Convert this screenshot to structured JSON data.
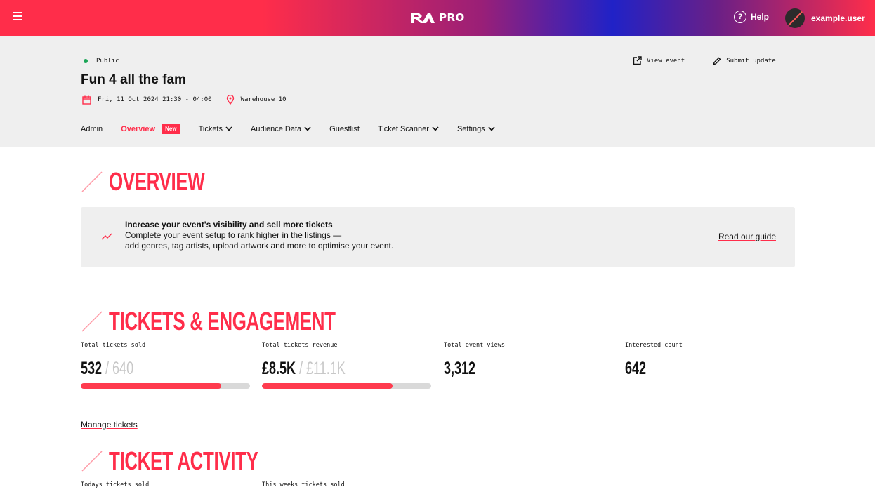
{
  "topbar": {
    "logo_text": "PRO",
    "help_label": "Help",
    "username": "example.user",
    "bg_color": "#ff2d4a"
  },
  "event": {
    "status": "Public",
    "title": "Fun 4 all the fam",
    "datetime": "Fri, 11 Oct 2024 21:30 - 04:00",
    "venue": "Warehouse 10",
    "actions": {
      "view_event": "View event",
      "submit_update": "Submit update"
    },
    "tabs": [
      {
        "label": "Admin"
      },
      {
        "label": "Overview",
        "badge": "New"
      },
      {
        "label": "Tickets"
      },
      {
        "label": "Audience Data"
      },
      {
        "label": "Guestlist"
      },
      {
        "label": "Ticket Scanner"
      },
      {
        "label": "Settings"
      }
    ]
  },
  "overview": {
    "title": "OVERVIEW",
    "banner": {
      "heading": "Increase your event's visibility and sell more tickets",
      "line1": "Complete your event setup to rank higher in the listings —",
      "line2": "add genres, tag artists, upload artwork and more to optimise your event.",
      "link": "Read our guide"
    }
  },
  "engagement": {
    "title": "TICKETS & ENGAGEMENT",
    "stats": [
      {
        "label": "Total tickets sold",
        "value": "532",
        "total": "/ 640",
        "progress": 0.83
      },
      {
        "label": "Total tickets revenue",
        "value": "£8.5K",
        "total": "/ £11.1K",
        "progress": 0.77
      },
      {
        "label": "Total event views",
        "value": "3,312"
      },
      {
        "label": "Interested count",
        "value": "642"
      }
    ],
    "manage_link": "Manage tickets"
  },
  "activity": {
    "title": "TICKET ACTIVITY",
    "labels": [
      "Todays tickets sold",
      "This weeks tickets sold"
    ]
  },
  "colors": {
    "accent": "#ff2d4a",
    "status_public": "#1aa556"
  }
}
